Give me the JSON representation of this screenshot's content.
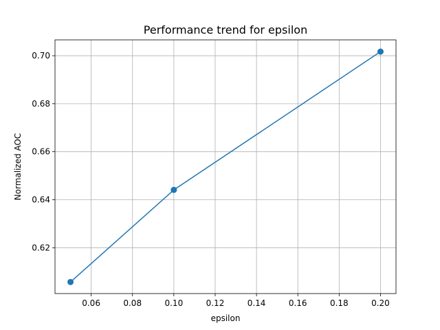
{
  "chart_data": {
    "type": "line",
    "title": "Performance trend for epsilon",
    "xlabel": "epsilon",
    "ylabel": "Normalized AOC",
    "x": [
      0.05,
      0.1,
      0.2
    ],
    "series": [
      {
        "values": [
          0.6057,
          0.6441,
          0.7017
        ],
        "color": "#1f77b4",
        "marker": "circle"
      }
    ],
    "xlim": [
      0.0425,
      0.2075
    ],
    "ylim": [
      0.6009,
      0.7066
    ],
    "xticks": [
      0.06,
      0.08,
      0.1,
      0.12,
      0.14,
      0.16,
      0.18,
      0.2
    ],
    "xtick_labels": [
      "0.06",
      "0.08",
      "0.10",
      "0.12",
      "0.14",
      "0.16",
      "0.18",
      "0.20"
    ],
    "yticks": [
      0.62,
      0.64,
      0.66,
      0.68,
      0.7
    ],
    "ytick_labels": [
      "0.62",
      "0.64",
      "0.66",
      "0.68",
      "0.70"
    ],
    "grid": true,
    "legend": false
  }
}
